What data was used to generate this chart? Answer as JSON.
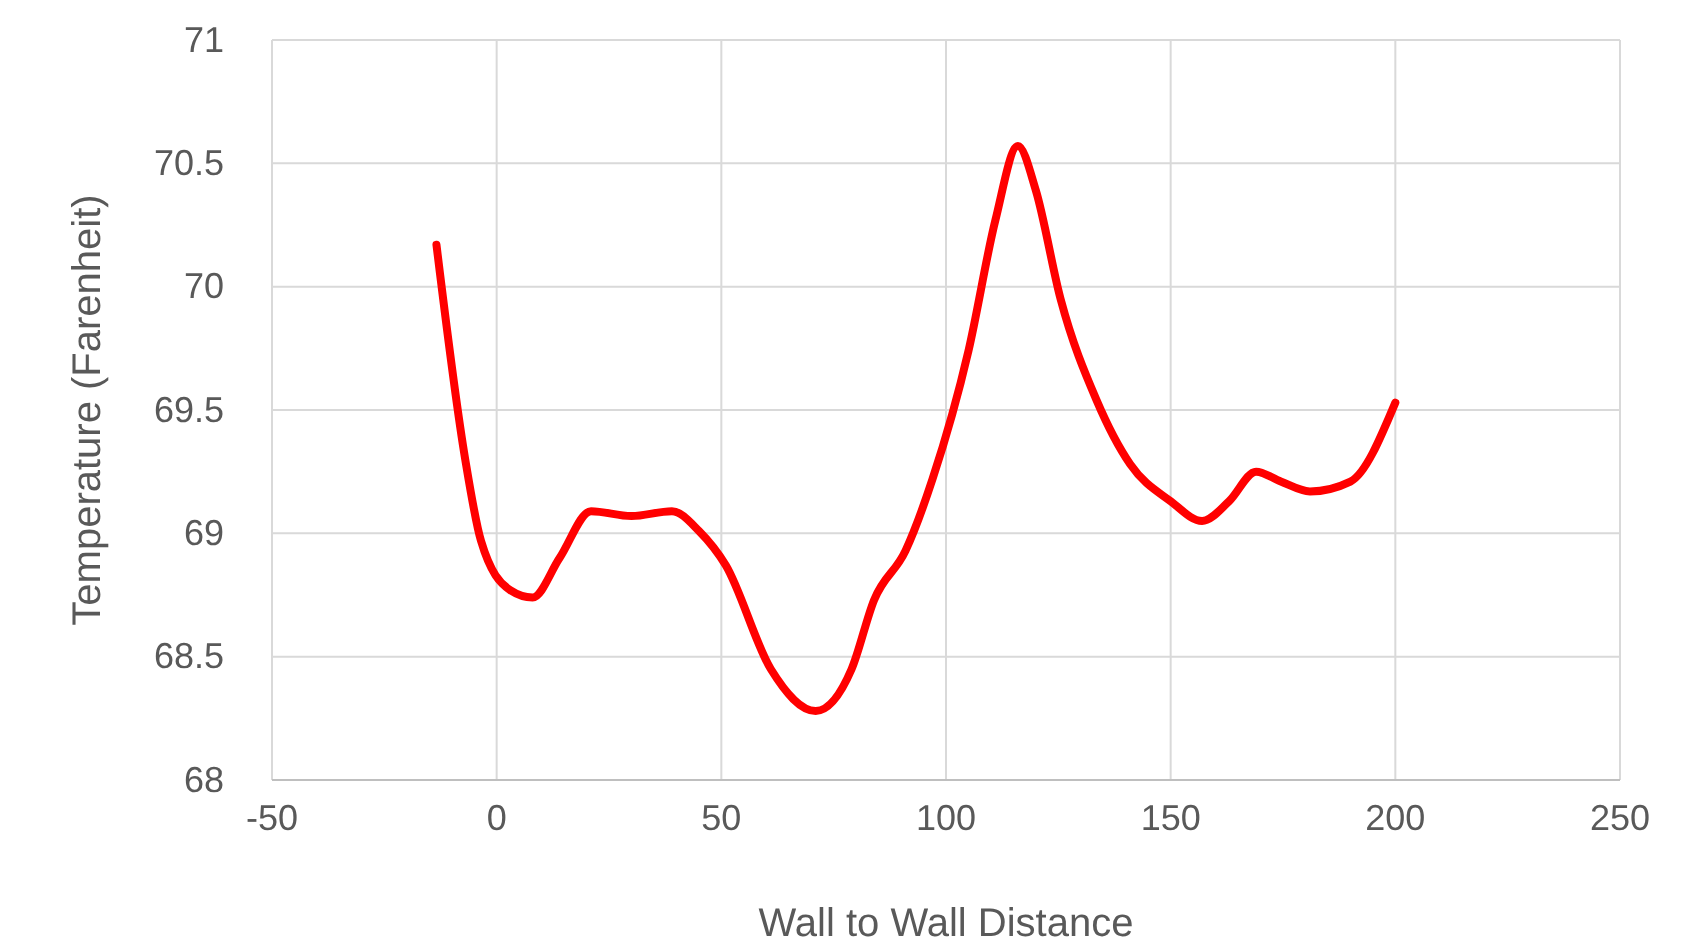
{
  "chart_data": {
    "type": "line",
    "xlabel": "Wall to Wall Distance",
    "ylabel": "Temperature (Farenheit)",
    "x": [
      -13.4,
      -7,
      -3.5,
      3,
      8,
      14,
      21,
      30,
      39,
      45,
      51,
      61,
      71,
      79,
      84,
      91,
      97,
      105,
      111,
      116,
      120,
      125.5,
      133.5,
      141,
      150,
      157,
      163,
      169,
      174.5,
      181,
      190,
      200
    ],
    "series": [
      {
        "color": "#ff0000",
        "values": [
          70.17,
          69.3,
          68.97,
          68.77,
          68.74,
          68.9,
          69.09,
          69.07,
          69.09,
          69.01,
          68.87,
          68.45,
          68.28,
          68.45,
          68.73,
          68.93,
          69.22,
          69.74,
          70.27,
          70.57,
          70.39,
          69.95,
          69.54,
          69.28,
          69.13,
          69.05,
          69.13,
          69.25,
          69.21,
          69.17,
          69.21,
          69.53
        ]
      }
    ],
    "xlim": [
      -50,
      250
    ],
    "xticks": [
      -50,
      0,
      50,
      100,
      150,
      200,
      250
    ],
    "ylim": [
      68,
      71
    ],
    "yticks": [
      68,
      68.5,
      69,
      69.5,
      70,
      70.5,
      71
    ],
    "grid": true,
    "marker": "none",
    "line_style": "solid"
  }
}
